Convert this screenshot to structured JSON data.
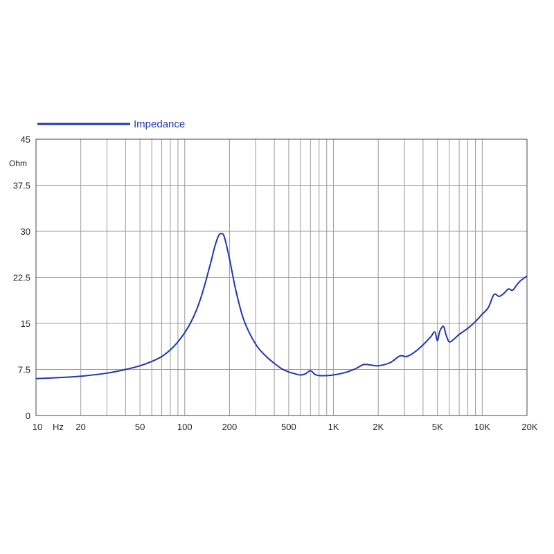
{
  "chart_data": {
    "type": "line",
    "x_scale": "log",
    "xlim": [
      10,
      20000
    ],
    "ylim": [
      0,
      45
    ],
    "grid": true,
    "legend_position": "top-left",
    "y_unit": "Ohm",
    "x_unit": "Hz",
    "y_ticks": [
      {
        "value": 0,
        "label": "0"
      },
      {
        "value": 7.5,
        "label": "7.5"
      },
      {
        "value": 15,
        "label": "15"
      },
      {
        "value": 22.5,
        "label": "22.5"
      },
      {
        "value": 30,
        "label": "30"
      },
      {
        "value": 37.5,
        "label": "37.5"
      },
      {
        "value": 45,
        "label": "45"
      }
    ],
    "x_ticks": [
      {
        "value": 10,
        "label": "10"
      },
      {
        "value": 20,
        "label": "20"
      },
      {
        "value": 50,
        "label": "50"
      },
      {
        "value": 100,
        "label": "100"
      },
      {
        "value": 200,
        "label": "200"
      },
      {
        "value": 500,
        "label": "500"
      },
      {
        "value": 1000,
        "label": "1K"
      },
      {
        "value": 2000,
        "label": "2K"
      },
      {
        "value": 5000,
        "label": "5K"
      },
      {
        "value": 10000,
        "label": "10K"
      },
      {
        "value": 20000,
        "label": "20K"
      }
    ],
    "series": [
      {
        "name": "Impedance",
        "color": "#1f35b0",
        "points": [
          [
            10,
            6.0
          ],
          [
            15,
            6.2
          ],
          [
            20,
            6.4
          ],
          [
            30,
            6.9
          ],
          [
            40,
            7.5
          ],
          [
            50,
            8.1
          ],
          [
            60,
            8.8
          ],
          [
            70,
            9.6
          ],
          [
            80,
            10.7
          ],
          [
            90,
            12.0
          ],
          [
            100,
            13.5
          ],
          [
            110,
            15.2
          ],
          [
            120,
            17.2
          ],
          [
            130,
            19.6
          ],
          [
            140,
            22.3
          ],
          [
            150,
            25.0
          ],
          [
            160,
            27.7
          ],
          [
            170,
            29.4
          ],
          [
            178,
            29.6
          ],
          [
            185,
            29.0
          ],
          [
            200,
            25.5
          ],
          [
            220,
            20.5
          ],
          [
            250,
            15.5
          ],
          [
            300,
            11.6
          ],
          [
            350,
            9.7
          ],
          [
            400,
            8.5
          ],
          [
            450,
            7.6
          ],
          [
            500,
            7.1
          ],
          [
            550,
            6.8
          ],
          [
            600,
            6.6
          ],
          [
            650,
            6.8
          ],
          [
            700,
            7.3
          ],
          [
            750,
            6.7
          ],
          [
            800,
            6.5
          ],
          [
            900,
            6.5
          ],
          [
            1000,
            6.6
          ],
          [
            1200,
            7.0
          ],
          [
            1400,
            7.6
          ],
          [
            1600,
            8.3
          ],
          [
            1800,
            8.2
          ],
          [
            2000,
            8.1
          ],
          [
            2400,
            8.6
          ],
          [
            2800,
            9.7
          ],
          [
            3100,
            9.6
          ],
          [
            3500,
            10.3
          ],
          [
            4000,
            11.5
          ],
          [
            4500,
            12.8
          ],
          [
            4800,
            13.6
          ],
          [
            5000,
            12.2
          ],
          [
            5200,
            13.8
          ],
          [
            5500,
            14.5
          ],
          [
            5700,
            13.2
          ],
          [
            6000,
            12.0
          ],
          [
            6500,
            12.5
          ],
          [
            7000,
            13.2
          ],
          [
            8000,
            14.2
          ],
          [
            9000,
            15.3
          ],
          [
            10000,
            16.5
          ],
          [
            11000,
            17.6
          ],
          [
            12000,
            19.7
          ],
          [
            13000,
            19.4
          ],
          [
            14000,
            19.9
          ],
          [
            15000,
            20.6
          ],
          [
            16000,
            20.4
          ],
          [
            17000,
            21.2
          ],
          [
            18000,
            21.9
          ],
          [
            20000,
            22.7
          ]
        ]
      }
    ]
  }
}
